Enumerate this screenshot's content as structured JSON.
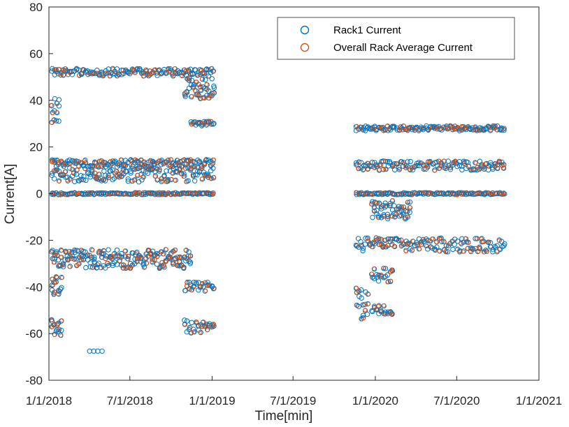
{
  "chart_data": {
    "type": "scatter",
    "xlabel": "Time[min]",
    "ylabel": "Current[A]",
    "xlim": [
      "2018-01-01",
      "2021-01-01"
    ],
    "ylim": [
      -80,
      80
    ],
    "x_ticks": [
      "1/1/2018",
      "7/1/2018",
      "1/1/2019",
      "7/1/2019",
      "1/1/2020",
      "7/1/2020",
      "1/1/2021"
    ],
    "y_ticks": [
      80,
      60,
      40,
      20,
      0,
      -20,
      -40,
      -60,
      -80
    ],
    "grid": false,
    "legend_position": "top-right",
    "series": [
      {
        "name": "Rack1 Current",
        "marker": "open-circle",
        "color": "#0072BD",
        "clusters": [
          {
            "x_start": "2018-01-08",
            "x_end": "2019-01-08",
            "y": 52,
            "spread": 1.6
          },
          {
            "x_start": "2018-01-08",
            "x_end": "2019-01-08",
            "y": 13,
            "spread": 1.6
          },
          {
            "x_start": "2018-01-08",
            "x_end": "2019-01-08",
            "y": 0,
            "spread": 0.4
          },
          {
            "x_start": "2018-01-08",
            "x_end": "2019-01-08",
            "y": 8,
            "spread": 3
          },
          {
            "x_start": "2018-01-08",
            "x_end": "2018-11-15",
            "y": -28,
            "spread": 4
          },
          {
            "x_start": "2018-01-08",
            "x_end": "2018-01-30",
            "y": -40,
            "spread": 5
          },
          {
            "x_start": "2018-01-08",
            "x_end": "2018-01-30",
            "y": -57,
            "spread": 4
          },
          {
            "x_start": "2018-01-08",
            "x_end": "2018-01-28",
            "y": 35,
            "spread": 6
          },
          {
            "x_start": "2018-11-01",
            "x_end": "2019-01-08",
            "y": -40,
            "spread": 2
          },
          {
            "x_start": "2018-11-01",
            "x_end": "2019-01-08",
            "y": -57,
            "spread": 3
          },
          {
            "x_start": "2018-11-15",
            "x_end": "2019-01-08",
            "y": 30,
            "spread": 1
          },
          {
            "x_start": "2018-11-01",
            "x_end": "2019-01-08",
            "y": 45,
            "spread": 5
          },
          {
            "x_start": "2018-04-01",
            "x_end": "2018-05-01",
            "y": -67.5,
            "spread": 0
          },
          {
            "x_start": "2019-11-20",
            "x_end": "2020-10-20",
            "y": 28,
            "spread": 1
          },
          {
            "x_start": "2019-11-20",
            "x_end": "2020-10-20",
            "y": 12,
            "spread": 2
          },
          {
            "x_start": "2019-11-20",
            "x_end": "2020-10-20",
            "y": 0,
            "spread": 0.4
          },
          {
            "x_start": "2019-11-20",
            "x_end": "2020-10-20",
            "y": -22,
            "spread": 3
          },
          {
            "x_start": "2019-11-20",
            "x_end": "2019-12-20",
            "y": -47,
            "spread": 7
          },
          {
            "x_start": "2019-12-25",
            "x_end": "2020-02-10",
            "y": -50,
            "spread": 2
          },
          {
            "x_start": "2019-12-25",
            "x_end": "2020-02-10",
            "y": -35,
            "spread": 3
          },
          {
            "x_start": "2019-12-25",
            "x_end": "2020-03-20",
            "y": -7,
            "spread": 4
          }
        ]
      },
      {
        "name": "Overall Rack Average Current",
        "marker": "open-circle",
        "color": "#D95319",
        "note_values_follow_rack1": true
      }
    ]
  }
}
